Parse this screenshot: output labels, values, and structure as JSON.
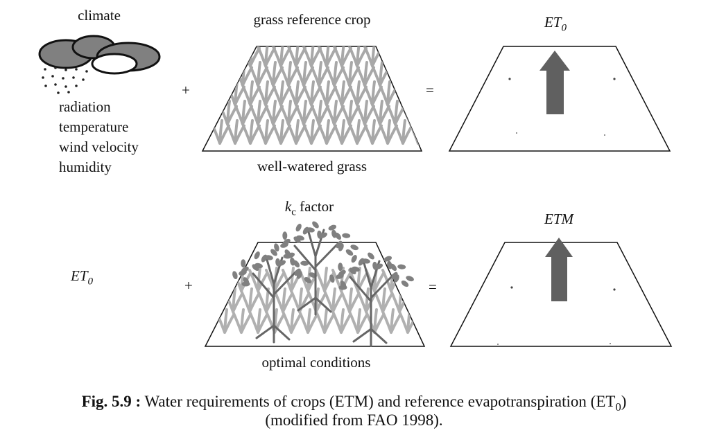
{
  "top_row": {
    "climate_label": "climate",
    "climate_factors": [
      "radiation",
      "temperature",
      "wind velocity",
      "humidity"
    ],
    "plus": "+",
    "crop_label": "grass reference crop",
    "crop_caption": "well-watered grass",
    "equals": "=",
    "result_label": "ET",
    "result_sub": "0"
  },
  "bottom_row": {
    "input_label": "ET",
    "input_sub": "0",
    "plus": "+",
    "factor_k": "k",
    "factor_sub": "c",
    "factor_rest": " factor",
    "crop_caption": "optimal conditions",
    "equals": "=",
    "result_label": "ETM"
  },
  "caption": {
    "bold": "Fig. 5.9 :",
    "line1": " Water requirements of crops (ETM) and reference evapotranspiration (ET",
    "line1_sub": "0",
    "line1_end": ")",
    "line2": "(modified from FAO 1998)."
  },
  "colors": {
    "arrow": "#606060",
    "grass": "#a8a8a8",
    "tree": "#707070",
    "cloud_dark": "#808080",
    "cloud_light": "#ffffff"
  }
}
